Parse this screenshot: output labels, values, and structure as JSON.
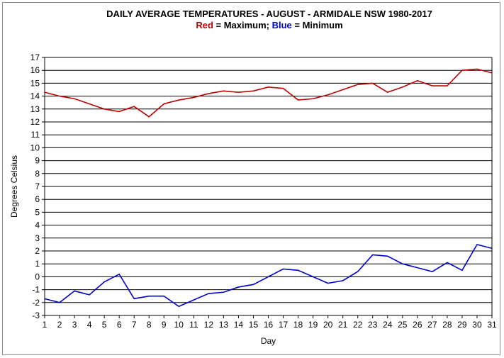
{
  "chart_data": {
    "type": "line",
    "title": "DAILY AVERAGE  TEMPERATURES - AUGUST - ARMIDALE NSW  1980-2017",
    "subtitle_parts": [
      {
        "text": "Red",
        "color": "#c00000"
      },
      {
        "text": " = Maximum;  ",
        "color": "#000000"
      },
      {
        "text": "Blue",
        "color": "#0000cc"
      },
      {
        "text": " = Minimum",
        "color": "#000000"
      }
    ],
    "xlabel": "Day",
    "ylabel": "Degrees Celsius",
    "ylim": [
      -3,
      17
    ],
    "yticks": [
      -3,
      -2,
      -1,
      0,
      1,
      2,
      3,
      4,
      5,
      6,
      7,
      8,
      9,
      10,
      11,
      12,
      13,
      14,
      15,
      16,
      17
    ],
    "x": [
      1,
      2,
      3,
      4,
      5,
      6,
      7,
      8,
      9,
      10,
      11,
      12,
      13,
      14,
      15,
      16,
      17,
      18,
      19,
      20,
      21,
      22,
      23,
      24,
      25,
      26,
      27,
      28,
      29,
      30,
      31
    ],
    "grid": "horizontal",
    "series": [
      {
        "color": "#c00000",
        "values": [
          14.3,
          14.0,
          13.8,
          13.4,
          13.0,
          12.8,
          13.2,
          12.4,
          13.4,
          13.7,
          13.9,
          14.2,
          14.4,
          14.3,
          14.4,
          14.7,
          14.6,
          13.7,
          13.8,
          14.1,
          14.5,
          14.9,
          15.0,
          14.3,
          14.7,
          15.2,
          14.8,
          14.8,
          16.0,
          16.1,
          15.8
        ]
      },
      {
        "color": "#0000cc",
        "values": [
          -1.7,
          -2.0,
          -1.1,
          -1.4,
          -0.4,
          0.2,
          -1.7,
          -1.5,
          -1.5,
          -2.3,
          -1.8,
          -1.3,
          -1.2,
          -0.8,
          -0.6,
          0.0,
          0.6,
          0.5,
          0.0,
          -0.5,
          -0.3,
          0.4,
          1.7,
          1.6,
          1.0,
          0.7,
          0.4,
          1.1,
          0.5,
          2.5,
          2.2
        ]
      }
    ]
  }
}
